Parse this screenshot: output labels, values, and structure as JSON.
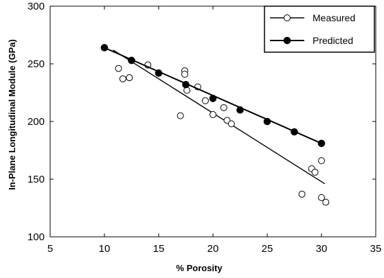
{
  "chart_data": {
    "type": "scatter",
    "xlabel": "% Porosity",
    "ylabel": "In-Plane Longitudinal Module (GPa)",
    "xlim": [
      5,
      35
    ],
    "ylim": [
      100,
      300
    ],
    "xticks": [
      5,
      10,
      15,
      20,
      25,
      30,
      35
    ],
    "yticks": [
      100,
      150,
      200,
      250,
      300
    ],
    "grid": false,
    "legend_position": "top-right",
    "series": [
      {
        "name": "Measured",
        "marker": "open-circle",
        "points": [
          {
            "x": 11.3,
            "y": 246
          },
          {
            "x": 11.7,
            "y": 237
          },
          {
            "x": 12.3,
            "y": 238
          },
          {
            "x": 14.0,
            "y": 249
          },
          {
            "x": 17.0,
            "y": 205
          },
          {
            "x": 17.4,
            "y": 244
          },
          {
            "x": 17.4,
            "y": 241
          },
          {
            "x": 17.6,
            "y": 227
          },
          {
            "x": 18.6,
            "y": 230
          },
          {
            "x": 19.3,
            "y": 218
          },
          {
            "x": 20.0,
            "y": 206
          },
          {
            "x": 21.0,
            "y": 212
          },
          {
            "x": 21.3,
            "y": 201
          },
          {
            "x": 21.7,
            "y": 198
          },
          {
            "x": 28.2,
            "y": 137
          },
          {
            "x": 29.1,
            "y": 159
          },
          {
            "x": 29.4,
            "y": 156
          },
          {
            "x": 30.0,
            "y": 166
          },
          {
            "x": 30.0,
            "y": 134
          },
          {
            "x": 30.4,
            "y": 130
          }
        ],
        "fit_line": [
          {
            "x": 10.8,
            "y": 262
          },
          {
            "x": 30.3,
            "y": 146
          }
        ]
      },
      {
        "name": "Predicted",
        "marker": "filled-circle",
        "points": [
          {
            "x": 10.0,
            "y": 264
          },
          {
            "x": 12.5,
            "y": 253
          },
          {
            "x": 15.0,
            "y": 242
          },
          {
            "x": 17.5,
            "y": 232
          },
          {
            "x": 20.0,
            "y": 220
          },
          {
            "x": 22.5,
            "y": 210
          },
          {
            "x": 25.0,
            "y": 200
          },
          {
            "x": 27.5,
            "y": 191
          },
          {
            "x": 30.0,
            "y": 181
          }
        ],
        "fit_line": [
          {
            "x": 10.0,
            "y": 264
          },
          {
            "x": 30.0,
            "y": 181
          }
        ]
      }
    ]
  }
}
